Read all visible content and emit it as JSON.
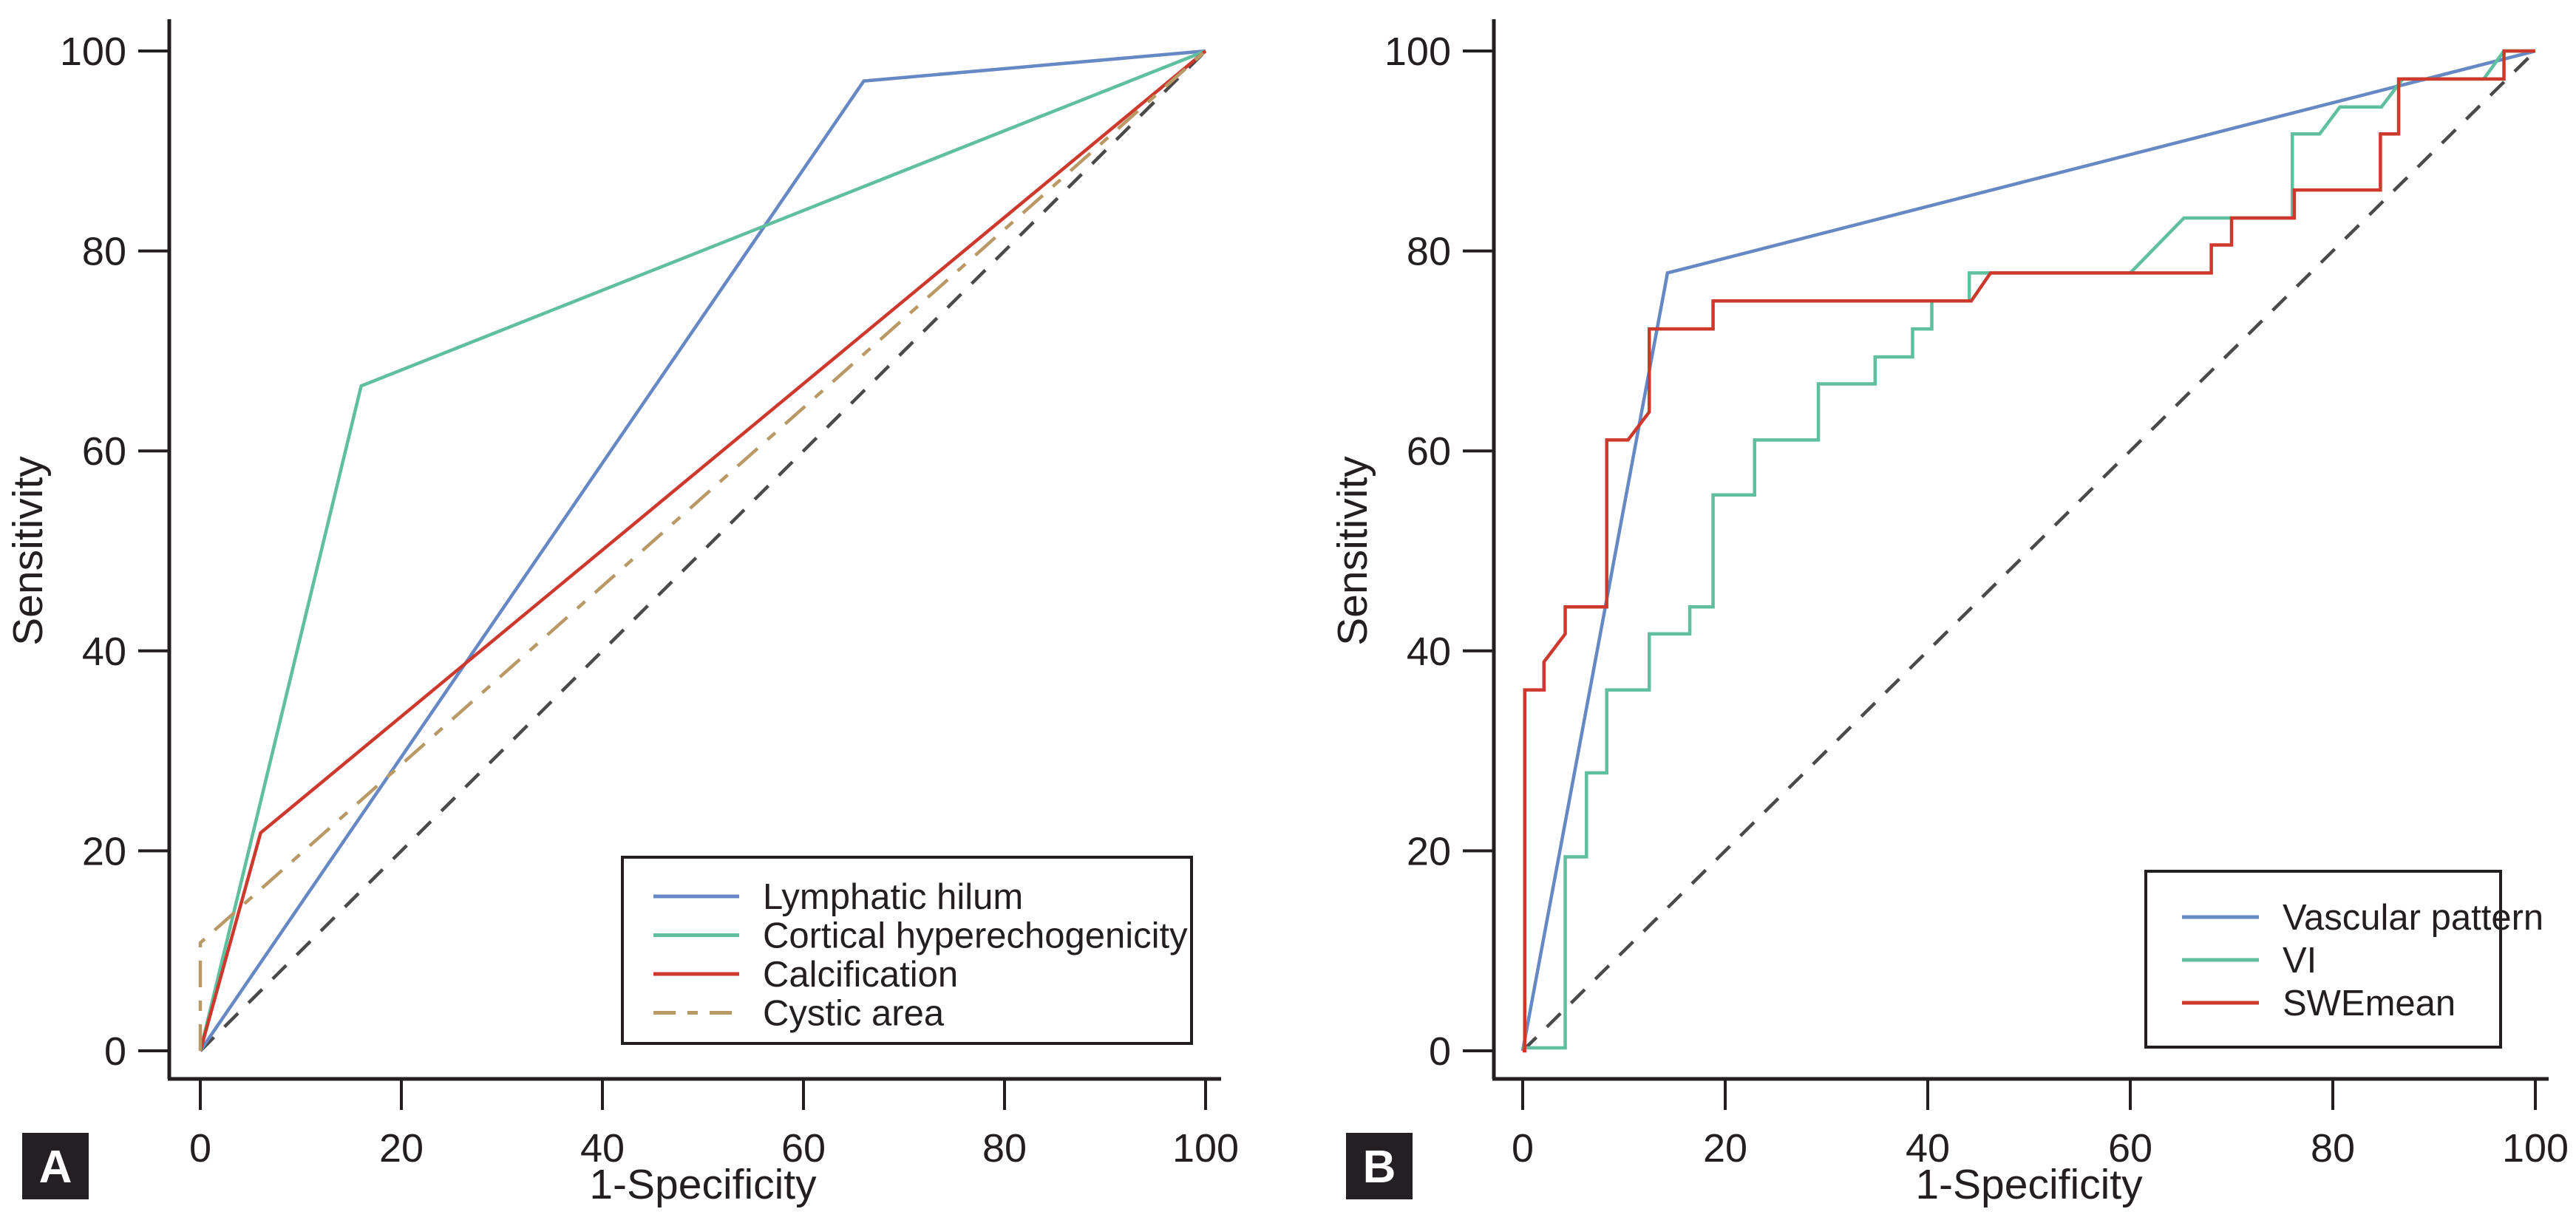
{
  "figure": {
    "background": "#ffffff",
    "text_color": "#231f20",
    "axis_color": "#231f20",
    "badge_bg": "#241f22",
    "badge_text_color": "#ffffff",
    "legend_border_color": "#231f20"
  },
  "chart_data": [
    {
      "type": "line",
      "panel_label": "A",
      "title": "",
      "xlabel": "1-Specificity",
      "ylabel": "Sensitivity",
      "xlim": [
        0,
        100
      ],
      "ylim": [
        0,
        100
      ],
      "xticks": [
        0,
        20,
        40,
        60,
        80,
        100
      ],
      "yticks": [
        0,
        20,
        40,
        60,
        80,
        100
      ],
      "grid": false,
      "legend_position": "inside lower-right",
      "series": [
        {
          "name": "Lymphatic hilum",
          "color": "#6688C4",
          "dash": null,
          "points": [
            [
              0,
              0
            ],
            [
              66,
              97
            ],
            [
              100,
              100
            ]
          ]
        },
        {
          "name": "Cortical hyperechogenicity",
          "color": "#5FBF9F",
          "dash": null,
          "points": [
            [
              0,
              0
            ],
            [
              16,
              66.5
            ],
            [
              100,
              100
            ]
          ]
        },
        {
          "name": "Calcification",
          "color": "#CD392C",
          "dash": null,
          "points": [
            [
              0,
              0
            ],
            [
              6,
              21.8
            ],
            [
              100,
              100
            ]
          ]
        },
        {
          "name": "Cystic area",
          "color": "#B99A66",
          "dash": "36 18 14 18",
          "points": [
            [
              0,
              0
            ],
            [
              0,
              10.8
            ],
            [
              100,
              100
            ]
          ]
        }
      ],
      "reference_line": {
        "name": "chance diagonal",
        "color": "#4A4A4A",
        "dash": "26 20",
        "points": [
          [
            0,
            0
          ],
          [
            100,
            100
          ]
        ]
      }
    },
    {
      "type": "line",
      "panel_label": "B",
      "title": "",
      "xlabel": "1-Specificity",
      "ylabel": "Sensitivity",
      "xlim": [
        0,
        100
      ],
      "ylim": [
        0,
        100
      ],
      "xticks": [
        0,
        20,
        40,
        60,
        80,
        100
      ],
      "yticks": [
        0,
        20,
        40,
        60,
        80,
        100
      ],
      "grid": false,
      "legend_position": "inside lower-right",
      "series": [
        {
          "name": "Vascular pattern",
          "color": "#6688C4",
          "dash": null,
          "points": [
            [
              0,
              0
            ],
            [
              14.3,
              77.8
            ],
            [
              100,
              100
            ]
          ]
        },
        {
          "name": "VI",
          "color": "#5FBF9F",
          "dash": null,
          "points": [
            [
              0,
              0.3
            ],
            [
              4.2,
              0.3
            ],
            [
              4.2,
              19.4
            ],
            [
              6.3,
              19.4
            ],
            [
              6.3,
              27.8
            ],
            [
              8.3,
              27.8
            ],
            [
              8.3,
              36.1
            ],
            [
              12.5,
              36.1
            ],
            [
              12.5,
              41.7
            ],
            [
              16.5,
              41.7
            ],
            [
              16.5,
              44.4
            ],
            [
              18.8,
              44.4
            ],
            [
              18.8,
              55.6
            ],
            [
              22.9,
              55.6
            ],
            [
              22.9,
              61.1
            ],
            [
              29.2,
              61.1
            ],
            [
              29.2,
              66.7
            ],
            [
              34.8,
              66.7
            ],
            [
              34.8,
              69.4
            ],
            [
              38.5,
              69.4
            ],
            [
              38.5,
              72.2
            ],
            [
              40.4,
              72.2
            ],
            [
              40.4,
              75
            ],
            [
              44.1,
              75
            ],
            [
              44.1,
              77.8
            ],
            [
              60,
              77.8
            ],
            [
              65.3,
              83.3
            ],
            [
              76,
              83.3
            ],
            [
              76,
              91.7
            ],
            [
              78.7,
              91.7
            ],
            [
              80.7,
              94.4
            ],
            [
              84.8,
              94.4
            ],
            [
              86.9,
              97.2
            ],
            [
              94.9,
              97.2
            ],
            [
              96.9,
              100
            ],
            [
              100,
              100
            ]
          ]
        },
        {
          "name": "SWEmean",
          "color": "#CD392C",
          "dash": null,
          "points": [
            [
              0,
              0
            ],
            [
              0.2,
              0
            ],
            [
              0.2,
              36.1
            ],
            [
              2.1,
              36.1
            ],
            [
              2.1,
              38.9
            ],
            [
              4.2,
              41.7
            ],
            [
              4.2,
              44.4
            ],
            [
              8.3,
              44.4
            ],
            [
              8.3,
              61.1
            ],
            [
              10.4,
              61.1
            ],
            [
              12.5,
              63.9
            ],
            [
              12.5,
              72.2
            ],
            [
              18.8,
              72.2
            ],
            [
              18.8,
              75
            ],
            [
              44.3,
              75
            ],
            [
              46.2,
              77.8
            ],
            [
              68,
              77.8
            ],
            [
              68,
              80.6
            ],
            [
              70,
              80.6
            ],
            [
              70,
              83.3
            ],
            [
              76.2,
              83.3
            ],
            [
              76.2,
              86.1
            ],
            [
              84.7,
              86.1
            ],
            [
              84.7,
              91.7
            ],
            [
              86.5,
              91.7
            ],
            [
              86.5,
              97.2
            ],
            [
              96.9,
              97.2
            ],
            [
              96.9,
              100
            ],
            [
              100,
              100
            ]
          ]
        }
      ],
      "reference_line": {
        "name": "chance diagonal",
        "color": "#4A4A4A",
        "dash": "26 20",
        "points": [
          [
            0,
            0
          ],
          [
            100,
            100
          ]
        ]
      }
    }
  ]
}
